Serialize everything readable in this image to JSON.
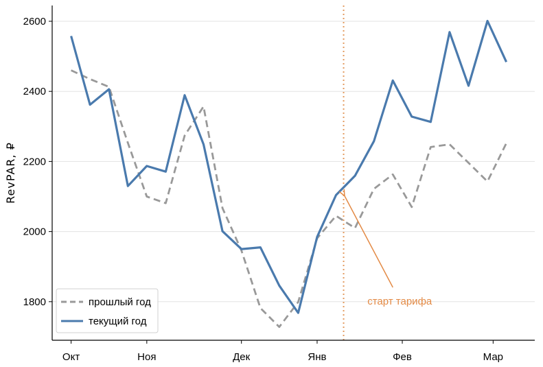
{
  "chart_data": {
    "type": "line",
    "ylabel": "RevPAR, ₽",
    "xlabel": "",
    "ylim": [
      1690,
      2645
    ],
    "x_range": [
      -1,
      24.5
    ],
    "yticks": [
      1800,
      2000,
      2200,
      2400,
      2600
    ],
    "xticks": [
      {
        "label": "Окт",
        "pos": 0
      },
      {
        "label": "Ноя",
        "pos": 4
      },
      {
        "label": "Дек",
        "pos": 9
      },
      {
        "label": "Янв",
        "pos": 13
      },
      {
        "label": "Фев",
        "pos": 17.5
      },
      {
        "label": "Мар",
        "pos": 22.3
      }
    ],
    "grid": "horizontal",
    "legend": "lower-left",
    "series": [
      {
        "name": "прошлый год",
        "style": "dashed",
        "color": "#999999",
        "x": [
          0,
          1,
          2,
          3,
          4,
          5,
          6,
          7,
          8,
          9,
          10,
          11,
          12,
          13,
          14,
          15,
          16,
          17,
          18,
          19,
          20,
          21,
          22,
          23
        ],
        "values": [
          2460,
          2435,
          2413,
          2253,
          2100,
          2081,
          2274,
          2357,
          2067,
          1946,
          1782,
          1728,
          1799,
          1981,
          2045,
          2010,
          2122,
          2163,
          2070,
          2241,
          2249,
          2196,
          2143,
          2252
        ]
      },
      {
        "name": "текущий год",
        "style": "solid",
        "color": "#4a7aad",
        "x": [
          0,
          1,
          2,
          3,
          4,
          5,
          6,
          7,
          8,
          9,
          10,
          11,
          12,
          13,
          14,
          15,
          16,
          17,
          18,
          19,
          20,
          21,
          22,
          23
        ],
        "values": [
          2558,
          2362,
          2406,
          2130,
          2187,
          2171,
          2389,
          2249,
          2001,
          1950,
          1955,
          1846,
          1768,
          1985,
          2104,
          2159,
          2258,
          2431,
          2328,
          2313,
          2569,
          2416,
          2601,
          2484
        ]
      }
    ],
    "vline": {
      "x": 14.4,
      "color": "#e39a5e",
      "style": "dotted"
    },
    "annotation": {
      "text": "старт тарифа",
      "color": "#e38a45",
      "arrow_from": {
        "x": 17,
        "y": 1841
      },
      "arrow_to": {
        "x": 14.45,
        "y": 2102
      }
    }
  }
}
